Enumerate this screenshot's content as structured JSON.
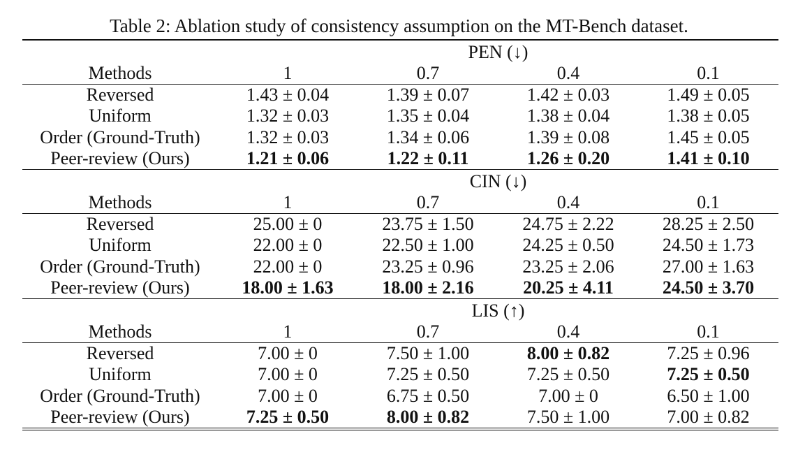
{
  "caption": "Table 2: Ablation study of consistency assumption on the MT-Bench dataset.",
  "sections": [
    {
      "title": "PEN (↓)",
      "header": [
        "Methods",
        "1",
        "0.7",
        "0.4",
        "0.1"
      ],
      "rows": [
        {
          "method": "Reversed",
          "cells": [
            "1.43 ± 0.04",
            "1.39 ± 0.07",
            "1.42 ± 0.03",
            "1.49 ± 0.05"
          ]
        },
        {
          "method": "Uniform",
          "cells": [
            "1.32 ± 0.03",
            "1.35 ± 0.04",
            "1.38 ± 0.04",
            "1.38 ± 0.05"
          ]
        },
        {
          "method": "Order (Ground-Truth)",
          "cells": [
            "1.32 ± 0.03",
            "1.34 ± 0.06",
            "1.39 ± 0.08",
            "1.45 ± 0.05"
          ]
        },
        {
          "method": "Peer-review (Ours)",
          "cells": [
            "1.21 ± 0.06",
            "1.22 ± 0.11",
            "1.26 ± 0.20",
            "1.41 ± 0.10"
          ]
        }
      ]
    },
    {
      "title": "CIN (↓)",
      "header": [
        "Methods",
        "1",
        "0.7",
        "0.4",
        "0.1"
      ],
      "rows": [
        {
          "method": "Reversed",
          "cells": [
            "25.00 ± 0",
            "23.75 ± 1.50",
            "24.75 ± 2.22",
            "28.25 ± 2.50"
          ]
        },
        {
          "method": "Uniform",
          "cells": [
            "22.00 ± 0",
            "22.50 ± 1.00",
            "24.25 ± 0.50",
            "24.50 ± 1.73"
          ]
        },
        {
          "method": "Order (Ground-Truth)",
          "cells": [
            "22.00 ± 0",
            "23.25 ± 0.96",
            "23.25 ± 2.06",
            "27.00 ± 1.63"
          ]
        },
        {
          "method": "Peer-review (Ours)",
          "cells": [
            "18.00 ± 1.63",
            "18.00 ± 2.16",
            "20.25 ± 4.11",
            "24.50 ± 3.70"
          ]
        }
      ]
    },
    {
      "title": "LIS (↑)",
      "header": [
        "Methods",
        "1",
        "0.7",
        "0.4",
        "0.1"
      ],
      "rows": [
        {
          "method": "Reversed",
          "cells": [
            "7.00 ± 0",
            "7.50 ± 1.00",
            "8.00 ± 0.82",
            "7.25 ± 0.96"
          ]
        },
        {
          "method": "Uniform",
          "cells": [
            "7.00 ± 0",
            "7.25 ± 0.50",
            "7.25 ± 0.50",
            "7.25 ± 0.50"
          ]
        },
        {
          "method": "Order (Ground-Truth)",
          "cells": [
            "7.00 ± 0",
            "6.75 ± 0.50",
            "7.00 ± 0",
            "6.50 ± 1.00"
          ]
        },
        {
          "method": "Peer-review (Ours)",
          "cells": [
            "7.25 ± 0.50",
            "8.00 ± 0.82",
            "7.50 ± 1.00",
            "7.00 ± 0.82"
          ]
        }
      ]
    }
  ]
}
